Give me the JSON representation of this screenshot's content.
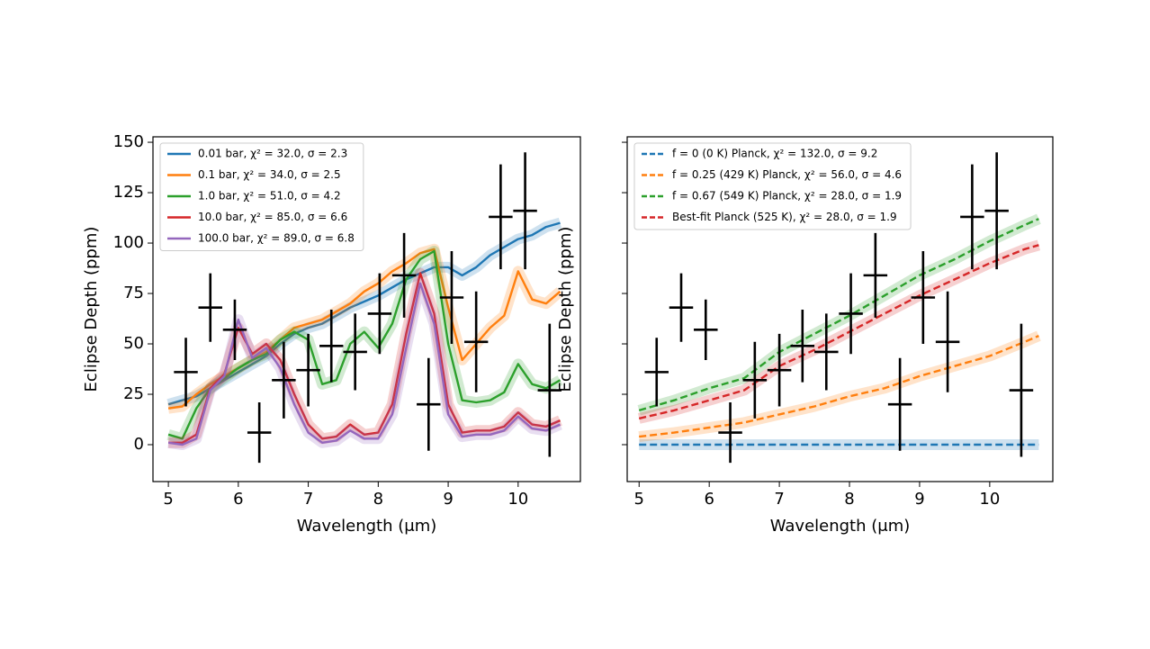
{
  "chart_data": [
    {
      "type": "line",
      "xlabel": "Wavelength (μm)",
      "ylabel": "Eclipse Depth (ppm)",
      "xlim": [
        4.78,
        10.89
      ],
      "ylim": [
        -18.3,
        152.7
      ],
      "xticks": [
        5,
        6,
        7,
        8,
        9,
        10
      ],
      "yticks": [
        0,
        25,
        50,
        75,
        100,
        125,
        150
      ],
      "show_ytick_labels": true,
      "legend": "upper left",
      "x": [
        5.0,
        5.2,
        5.4,
        5.6,
        5.8,
        6.0,
        6.2,
        6.4,
        6.6,
        6.8,
        7.0,
        7.2,
        7.4,
        7.6,
        7.8,
        8.0,
        8.2,
        8.4,
        8.6,
        8.8,
        9.0,
        9.2,
        9.4,
        9.6,
        9.8,
        10.0,
        10.2,
        10.4,
        10.6
      ],
      "series": [
        {
          "name": "0.01 bar, χ² = 32.0, σ = 2.3",
          "color": "#1f77b4",
          "dashed": false,
          "values": [
            20,
            22,
            24,
            28,
            32,
            36,
            40,
            44,
            50,
            55,
            58,
            60,
            64,
            68,
            71,
            74,
            78,
            82,
            85,
            88,
            88,
            84,
            88,
            94,
            98,
            102,
            104,
            108,
            110
          ]
        },
        {
          "name": "0.1 bar, χ² = 34.0, σ = 2.5",
          "color": "#ff7f0e",
          "dashed": false,
          "values": [
            18,
            19,
            25,
            30,
            34,
            38,
            42,
            46,
            52,
            58,
            60,
            62,
            66,
            70,
            76,
            80,
            86,
            90,
            95,
            97,
            68,
            42,
            50,
            58,
            64,
            86,
            72,
            70,
            76
          ]
        },
        {
          "name": "1.0 bar, χ² = 51.0, σ = 4.2",
          "color": "#2ca02c",
          "dashed": false,
          "values": [
            5,
            3,
            18,
            28,
            33,
            38,
            42,
            45,
            52,
            56,
            52,
            30,
            32,
            50,
            56,
            48,
            60,
            82,
            92,
            96,
            50,
            22,
            21,
            22,
            26,
            40,
            30,
            28,
            32
          ]
        },
        {
          "name": "10.0 bar, χ² = 85.0, σ = 6.6",
          "color": "#d62728",
          "dashed": false,
          "values": [
            1,
            1,
            5,
            28,
            35,
            58,
            45,
            50,
            42,
            25,
            10,
            3,
            4,
            10,
            5,
            6,
            20,
            55,
            85,
            65,
            20,
            6,
            7,
            7,
            9,
            16,
            10,
            9,
            12
          ]
        },
        {
          "name": "100.0 bar, χ² = 89.0, σ = 6.8",
          "color": "#9467bd",
          "dashed": false,
          "values": [
            1,
            0,
            3,
            27,
            34,
            62,
            43,
            48,
            38,
            20,
            6,
            1,
            2,
            7,
            3,
            3,
            15,
            48,
            80,
            60,
            15,
            4,
            5,
            5,
            7,
            14,
            8,
            7,
            10
          ]
        }
      ],
      "points": {
        "color": "#000000",
        "x": [
          5.25,
          5.6,
          5.95,
          6.3,
          6.65,
          7.0,
          7.33,
          7.67,
          8.02,
          8.37,
          8.72,
          9.05,
          9.4,
          9.75,
          10.1,
          10.45
        ],
        "values": [
          36,
          68,
          57,
          6,
          32,
          37,
          49,
          46,
          65,
          84,
          20,
          73,
          51,
          113,
          116,
          27
        ],
        "xerr": [
          0.17,
          0.17,
          0.17,
          0.17,
          0.17,
          0.17,
          0.17,
          0.17,
          0.17,
          0.17,
          0.17,
          0.17,
          0.17,
          0.17,
          0.17,
          0.17
        ],
        "yerr": [
          17,
          17,
          15,
          15,
          19,
          18,
          18,
          19,
          20,
          21,
          23,
          23,
          25,
          26,
          29,
          33
        ]
      }
    },
    {
      "type": "line",
      "xlabel": "Wavelength (μm)",
      "ylabel": "Eclipse Depth (ppm)",
      "xlim": [
        4.83,
        10.9
      ],
      "ylim": [
        -18.3,
        152.7
      ],
      "xticks": [
        5,
        6,
        7,
        8,
        9,
        10
      ],
      "yticks": [
        0,
        25,
        50,
        75,
        100,
        125,
        150
      ],
      "show_ytick_labels": false,
      "legend": "upper left",
      "x": [
        5.0,
        5.5,
        6.0,
        6.5,
        7.0,
        7.5,
        8.0,
        8.5,
        9.0,
        9.5,
        10.0,
        10.5,
        10.7
      ],
      "series": [
        {
          "name": "f = 0 (0 K) Planck, χ² = 132.0, σ = 9.2",
          "color": "#1f77b4",
          "dashed": true,
          "values": [
            0,
            0,
            0,
            0,
            0,
            0,
            0,
            0,
            0,
            0,
            0,
            0,
            0
          ]
        },
        {
          "name": "f = 0.25 (429 K) Planck, χ² = 56.0, σ = 4.6",
          "color": "#ff7f0e",
          "dashed": true,
          "values": [
            4,
            6,
            8.5,
            11,
            15,
            19,
            24,
            28,
            34,
            39,
            44,
            51,
            54
          ]
        },
        {
          "name": "f = 0.67 (549 K) Planck, χ² = 28.0, σ = 1.9",
          "color": "#2ca02c",
          "dashed": true,
          "values": [
            17,
            22,
            28,
            33,
            46,
            55,
            64,
            74,
            84,
            92,
            101,
            109,
            112
          ]
        },
        {
          "name": "Best-fit Planck (525 K), χ² = 28.0, σ = 1.9",
          "color": "#d62728",
          "dashed": true,
          "values": [
            13,
            17,
            22,
            27,
            39,
            47,
            56,
            65,
            74,
            82,
            90,
            97,
            99
          ]
        }
      ],
      "points": {
        "color": "#000000",
        "x": [
          5.25,
          5.6,
          5.95,
          6.3,
          6.65,
          7.0,
          7.33,
          7.67,
          8.02,
          8.37,
          8.72,
          9.05,
          9.4,
          9.75,
          10.1,
          10.45
        ],
        "values": [
          36,
          68,
          57,
          6,
          32,
          37,
          49,
          46,
          65,
          84,
          20,
          73,
          51,
          113,
          116,
          27
        ],
        "xerr": [
          0.17,
          0.17,
          0.17,
          0.17,
          0.17,
          0.17,
          0.17,
          0.17,
          0.17,
          0.17,
          0.17,
          0.17,
          0.17,
          0.17,
          0.17,
          0.17
        ],
        "yerr": [
          17,
          17,
          15,
          15,
          19,
          18,
          18,
          19,
          20,
          21,
          23,
          23,
          25,
          26,
          29,
          33
        ]
      }
    }
  ]
}
